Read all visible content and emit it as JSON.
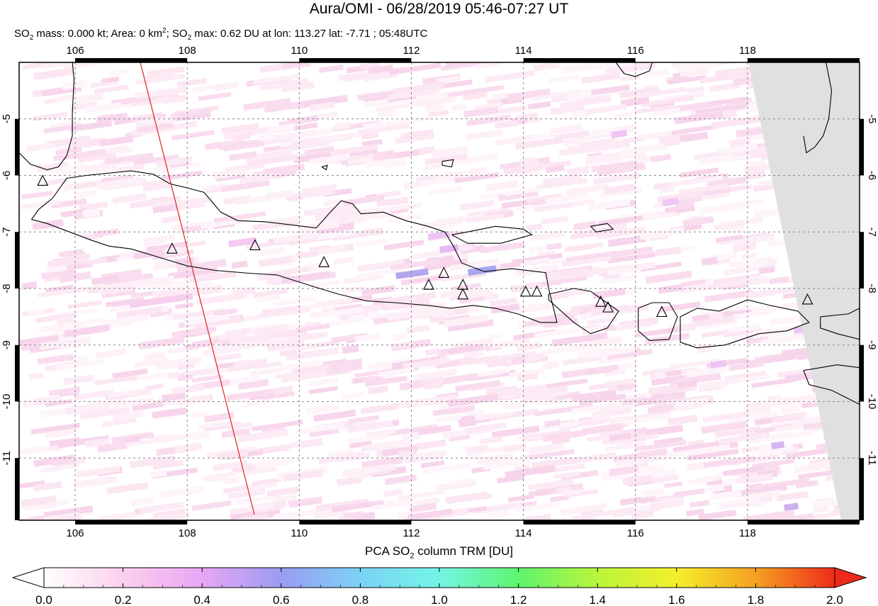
{
  "header": {
    "title": "Aura/OMI - 06/28/2019 05:46-07:27 UT",
    "subtitle": {
      "mass_label": "SO",
      "mass_sub": "2",
      "mass_text": " mass: 0.000 kt; Area: 0 km",
      "area_sup": "2",
      "max_prefix": "; SO",
      "max_sub": "2",
      "max_text": " max: 0.62 DU at lon: 113.27 lat: -7.71 ; 05:48UTC"
    }
  },
  "map": {
    "lon_range": [
      105,
      120
    ],
    "lat_range": [
      -12.1,
      -4.0
    ],
    "lon_ticks": [
      "106",
      "108",
      "110",
      "112",
      "114",
      "116",
      "118"
    ],
    "lat_ticks": [
      "-5",
      "-6",
      "-7",
      "-8",
      "-9",
      "-10",
      "-11"
    ],
    "lon_tick_values": [
      106,
      108,
      110,
      112,
      114,
      116,
      118
    ],
    "lat_tick_values": [
      -5,
      -6,
      -7,
      -8,
      -9,
      -10,
      -11
    ],
    "volcanoes": [
      [
        105.42,
        -6.1
      ],
      [
        107.73,
        -7.3
      ],
      [
        109.21,
        -7.24
      ],
      [
        110.44,
        -7.54
      ],
      [
        112.31,
        -7.94
      ],
      [
        112.58,
        -7.73
      ],
      [
        112.92,
        -7.94
      ],
      [
        112.92,
        -8.11
      ],
      [
        114.04,
        -8.06
      ],
      [
        114.24,
        -8.06
      ],
      [
        115.38,
        -8.24
      ],
      [
        115.51,
        -8.34
      ],
      [
        116.47,
        -8.42
      ],
      [
        119.07,
        -8.2
      ]
    ],
    "no_data_color": "#e0e0e0",
    "orbit_edge_color": "#dd2222"
  },
  "colorbar": {
    "title_prefix": "PCA SO",
    "title_sub": "2",
    "title_suffix": " column TRM [DU]",
    "tick_labels": [
      "0.0",
      "0.2",
      "0.4",
      "0.6",
      "0.8",
      "1.0",
      "1.2",
      "1.4",
      "1.6",
      "1.8",
      "2.0"
    ],
    "range": [
      0.0,
      2.0
    ],
    "colors": [
      "#ffffff",
      "#fbd0ec",
      "#e9a6f5",
      "#9a9cf2",
      "#7bd2f6",
      "#73f5e6",
      "#5ef56e",
      "#b8f53a",
      "#f5ef2b",
      "#f5a123",
      "#ee2b1a"
    ]
  }
}
